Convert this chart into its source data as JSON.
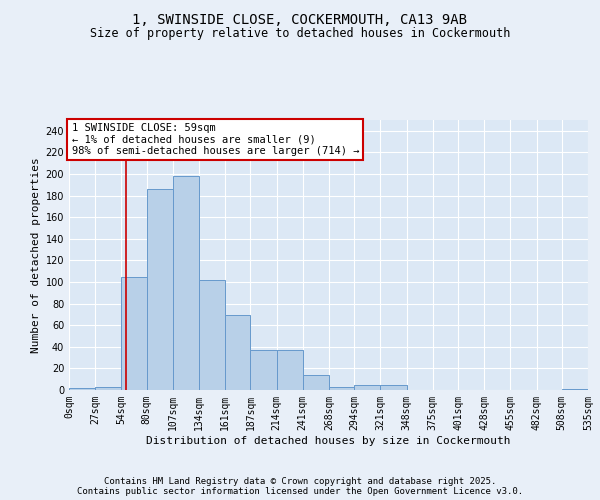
{
  "title_line1": "1, SWINSIDE CLOSE, COCKERMOUTH, CA13 9AB",
  "title_line2": "Size of property relative to detached houses in Cockermouth",
  "xlabel": "Distribution of detached houses by size in Cockermouth",
  "ylabel": "Number of detached properties",
  "annotation_title": "1 SWINSIDE CLOSE: 59sqm",
  "annotation_line1": "← 1% of detached houses are smaller (9)",
  "annotation_line2": "98% of semi-detached houses are larger (714) →",
  "footer_line1": "Contains HM Land Registry data © Crown copyright and database right 2025.",
  "footer_line2": "Contains public sector information licensed under the Open Government Licence v3.0.",
  "bin_edges": [
    0,
    27,
    54,
    80,
    107,
    134,
    161,
    187,
    214,
    241,
    268,
    294,
    321,
    348,
    375,
    401,
    428,
    455,
    482,
    508,
    535
  ],
  "bar_heights": [
    2,
    3,
    105,
    186,
    198,
    102,
    69,
    37,
    37,
    14,
    3,
    5,
    5,
    0,
    0,
    0,
    0,
    0,
    0,
    1
  ],
  "bar_facecolor": "#b8d0e8",
  "bar_edgecolor": "#6699cc",
  "vline_x": 59,
  "vline_color": "#cc0000",
  "ylim": [
    0,
    250
  ],
  "yticks": [
    0,
    20,
    40,
    60,
    80,
    100,
    120,
    140,
    160,
    180,
    200,
    220,
    240
  ],
  "background_color": "#e8eff8",
  "plot_bg_color": "#dce8f5",
  "grid_color": "#ffffff",
  "annotation_box_edgecolor": "#cc0000",
  "annotation_box_facecolor": "#ffffff",
  "title_fontsize": 10,
  "subtitle_fontsize": 8.5,
  "tick_fontsize": 7,
  "label_fontsize": 8,
  "footer_fontsize": 6.5,
  "annotation_fontsize": 7.5
}
